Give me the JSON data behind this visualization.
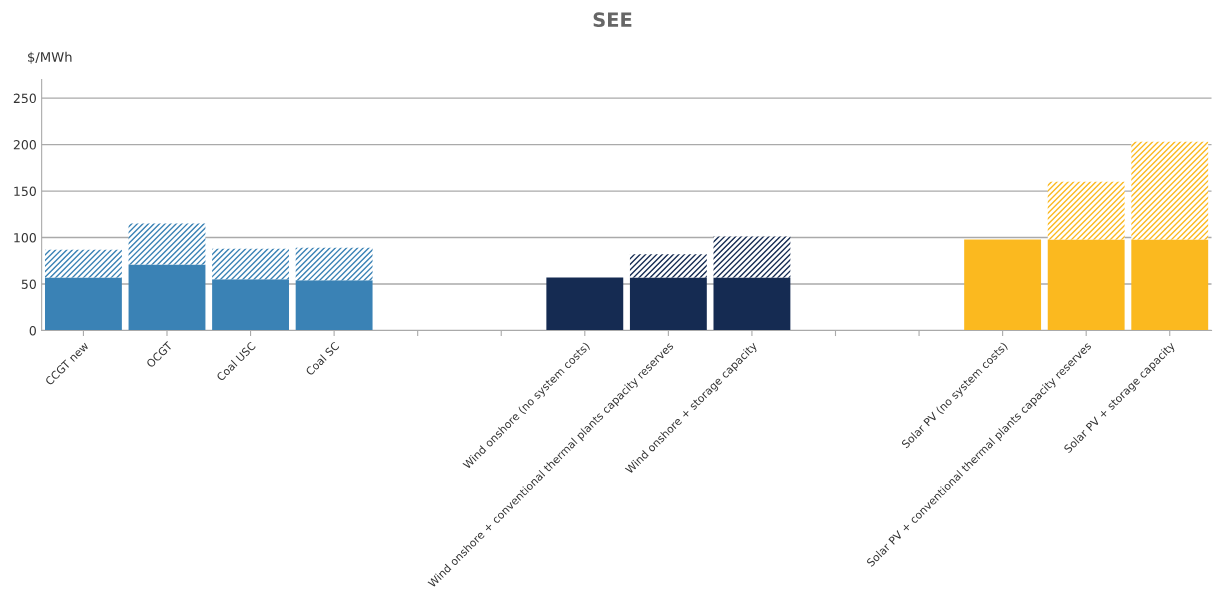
{
  "chart_data": {
    "type": "bar",
    "title": "SEE",
    "ylabel": "$/MWh",
    "stacked": true,
    "categories": [
      "CCGT new",
      "OCGT",
      "Coal USC",
      "Coal SC",
      null,
      null,
      "Wind onshore (no system costs)",
      "Wind onshore + conventional thermal plants capacity reserves",
      "Wind onshore + storage capacity",
      null,
      null,
      "Solar PV (no system costs)",
      "Solar PV + conventional thermal plants capacity reserves",
      "Solar PV + storage capacity"
    ],
    "series": [
      {
        "colors": [
          "#3a82b5",
          "#3a82b5",
          "#3a82b5",
          "#3a82b5",
          null,
          null,
          "#152b52",
          "#152b52",
          "#152b52",
          null,
          null,
          "#fbb91f",
          "#fbb91f",
          "#fbb91f"
        ],
        "values": [
          57,
          71,
          55,
          54,
          null,
          null,
          57,
          57,
          57,
          null,
          null,
          98,
          98,
          98
        ]
      },
      {
        "colors": [
          "#3a82b5",
          "#3a82b5",
          "#3a82b5",
          "#3a82b5",
          null,
          null,
          "#152b52",
          "#152b52",
          "#152b52",
          null,
          null,
          "#fbb91f",
          "#fbb91f",
          "#fbb91f"
        ],
        "values": [
          30,
          44,
          33,
          35,
          null,
          null,
          null,
          25,
          44,
          null,
          null,
          null,
          62,
          105
        ]
      }
    ],
    "ylim": [
      0,
      270
    ],
    "yticks": [
      0,
      50,
      100,
      150,
      200,
      250
    ],
    "grid": "y"
  }
}
